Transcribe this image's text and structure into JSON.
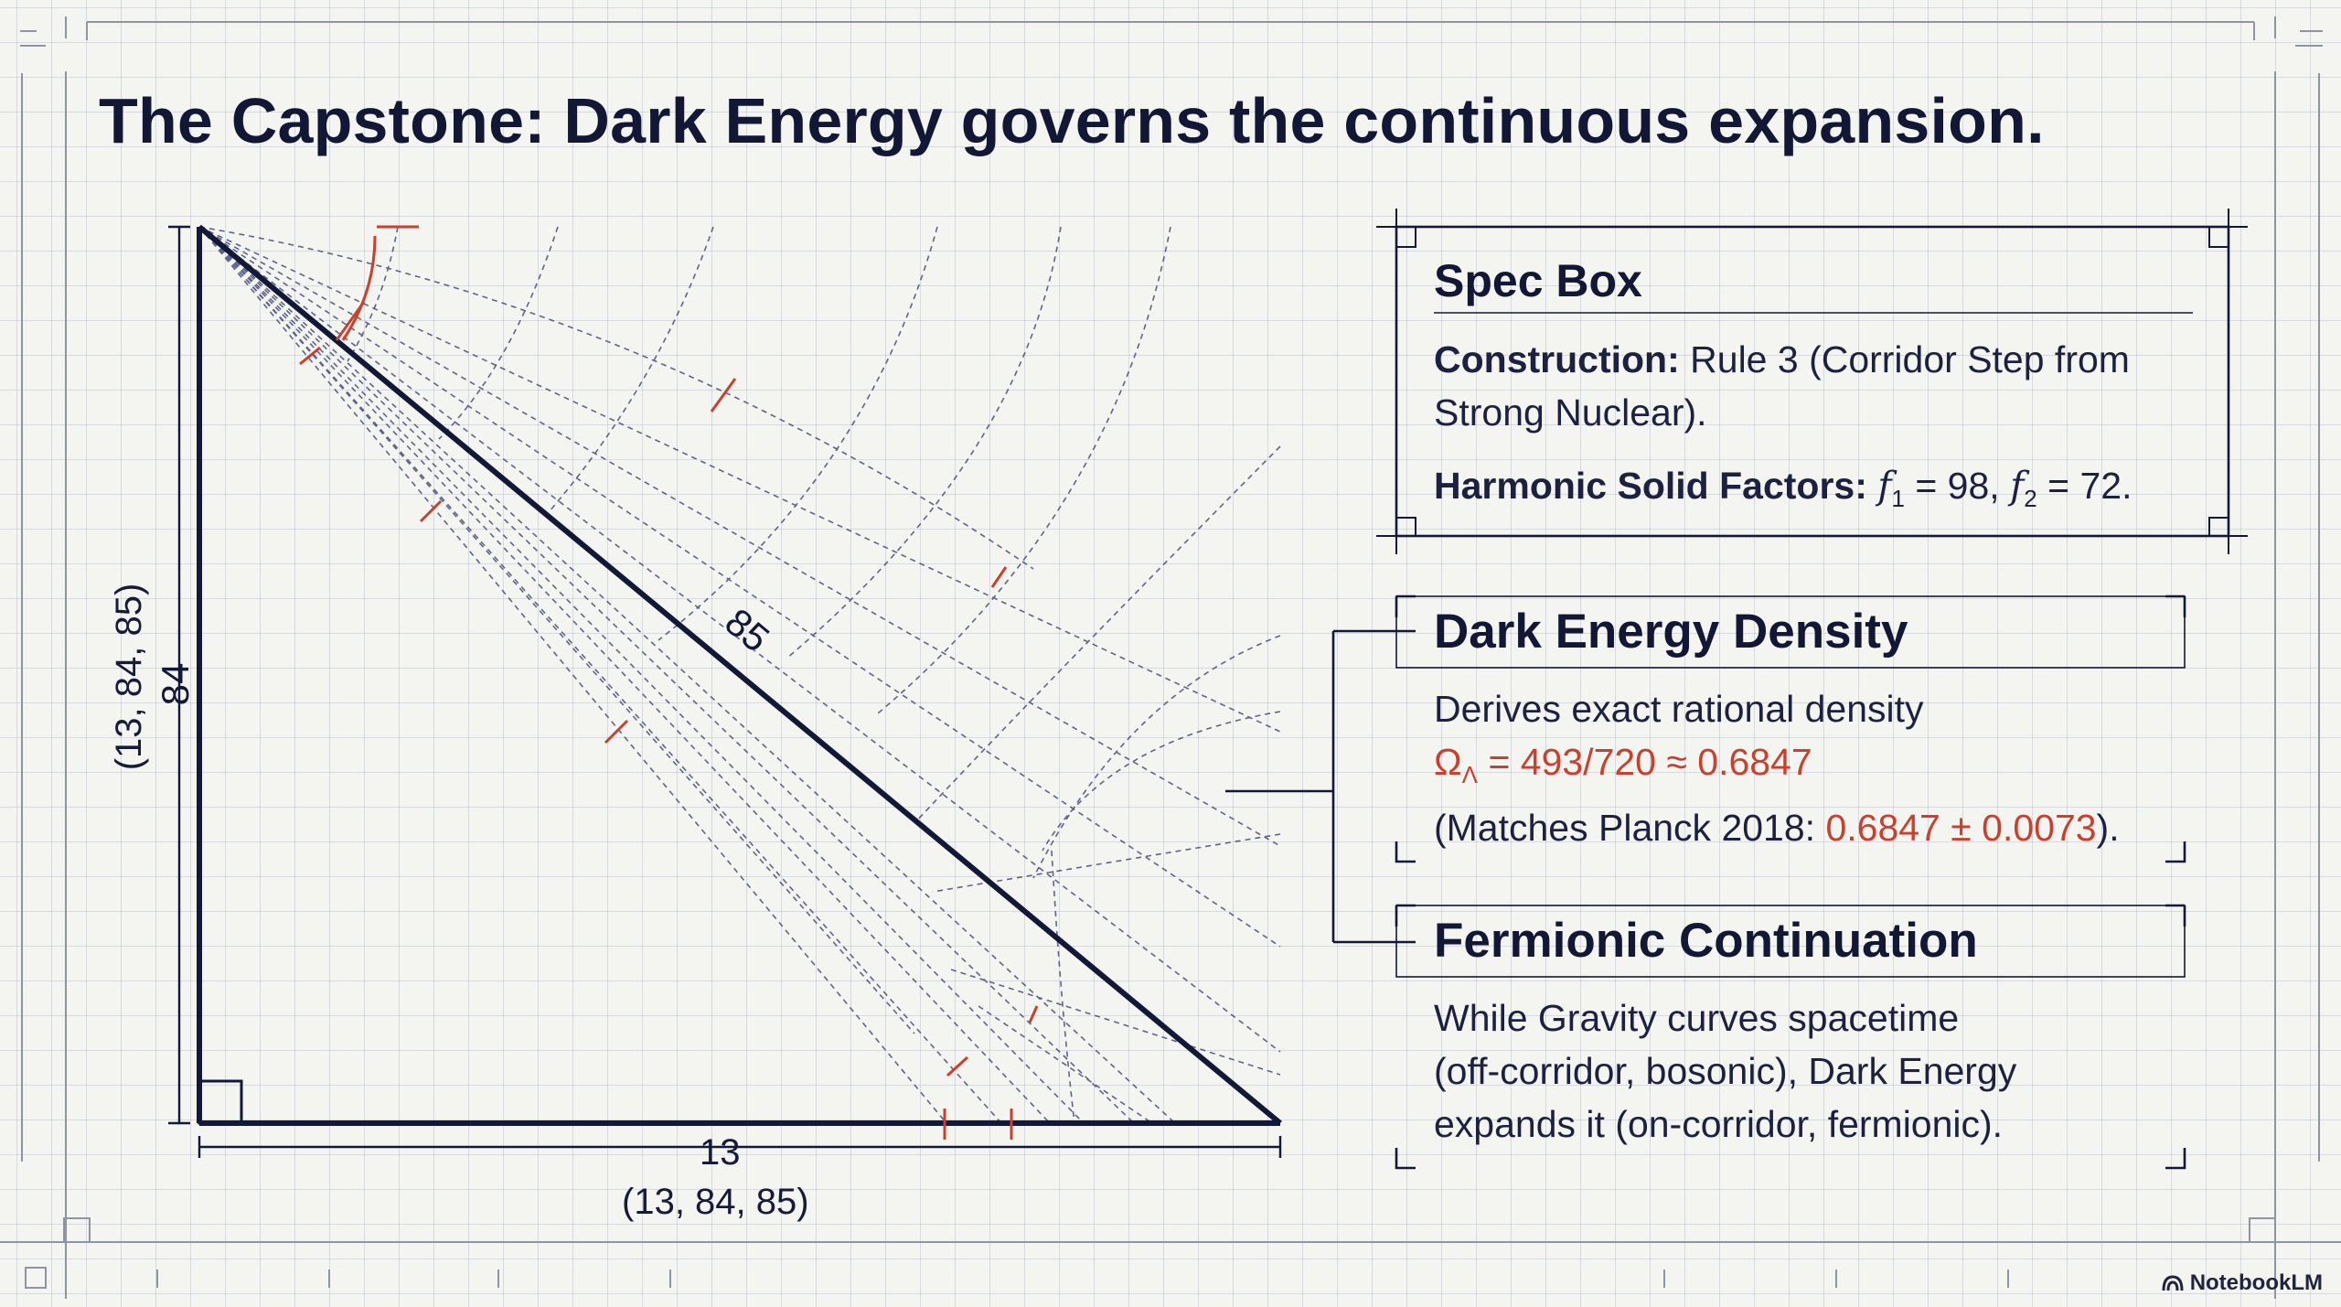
{
  "title": "The Capstone: Dark Energy governs the continuous expansion.",
  "diagram": {
    "triple": [
      13,
      84,
      85
    ],
    "hypotenuse_label": "85",
    "vertical_label": "84",
    "horizontal_label": "13",
    "vertical_triple_label": "(13, 84, 85)",
    "bottom_triple_label": "(13, 84, 85)"
  },
  "spec_box": {
    "title": "Spec Box",
    "construction_label": "Construction:",
    "construction_text_1": "Rule 3 (Corridor Step from",
    "construction_text_2": "Strong Nuclear).",
    "factors_label": "Harmonic Solid Factors:",
    "f1_symbol": "f",
    "f1_subscript": "1",
    "f1_value": "= 98,",
    "f2_symbol": "f",
    "f2_subscript": "2",
    "f2_value": "= 72."
  },
  "dark_energy": {
    "title": "Dark Energy Density",
    "line1": "Derives exact rational density",
    "omega_symbol": "Ω",
    "omega_subscript": "Λ",
    "omega_value": "= 493/720 ≈ 0.6847",
    "planck_prefix": "(Matches Planck 2018: ",
    "planck_value": "0.6847 ± 0.0073",
    "planck_suffix": ")."
  },
  "fermionic": {
    "title": "Fermionic Continuation",
    "line1": "While Gravity curves spacetime",
    "line2": "(off-corridor, bosonic), Dark Energy",
    "line3": "expands it (on-corridor, fermionic)."
  },
  "brand": "NotebookLM",
  "colors": {
    "ink": "#121838",
    "accent_red": "#c8412f",
    "grid": "#969eac",
    "background": "#f4f4f1"
  }
}
